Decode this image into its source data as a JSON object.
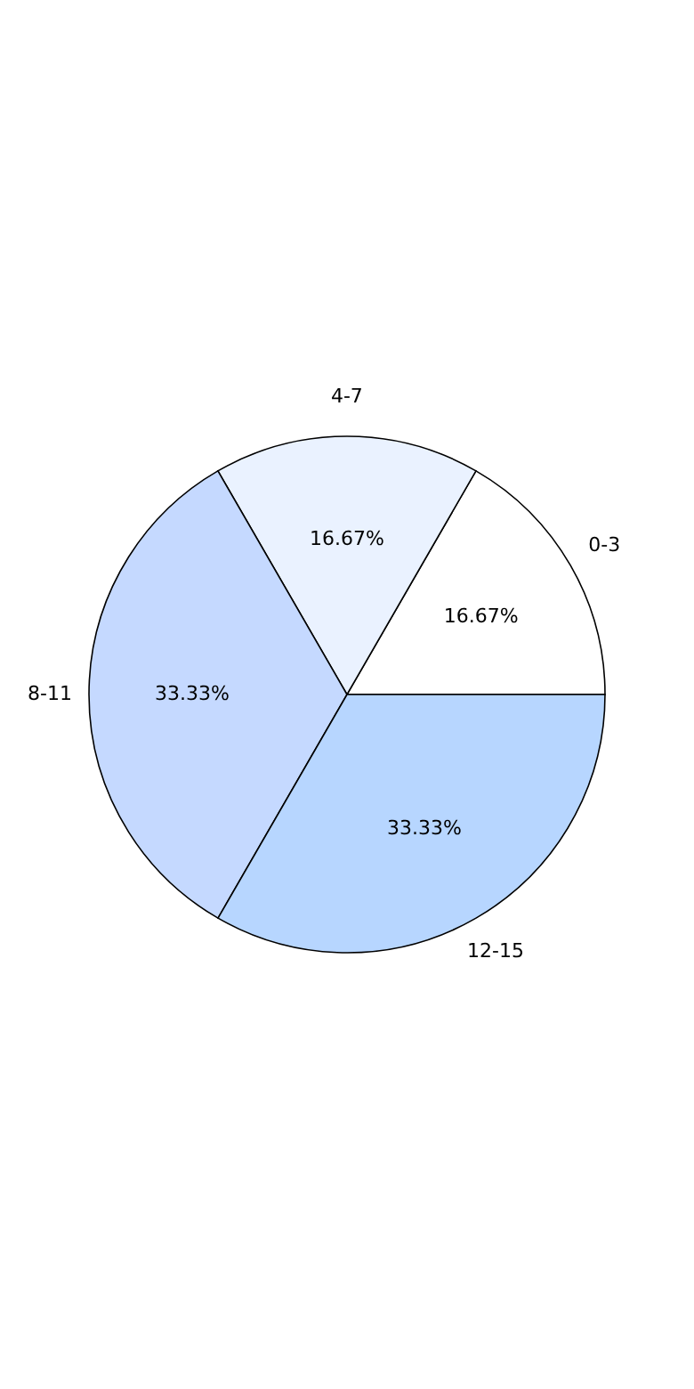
{
  "chart_data": {
    "type": "pie",
    "categories": [
      "0-3",
      "4-7",
      "8-11",
      "12-15"
    ],
    "values": [
      16.67,
      16.67,
      33.33,
      33.33
    ],
    "value_labels": [
      "16.67%",
      "16.67%",
      "33.33%",
      "33.33%"
    ],
    "colors": [
      "#ffffff",
      "#eaf2ff",
      "#c5d9ff",
      "#b7d6ff"
    ],
    "legend": false
  }
}
